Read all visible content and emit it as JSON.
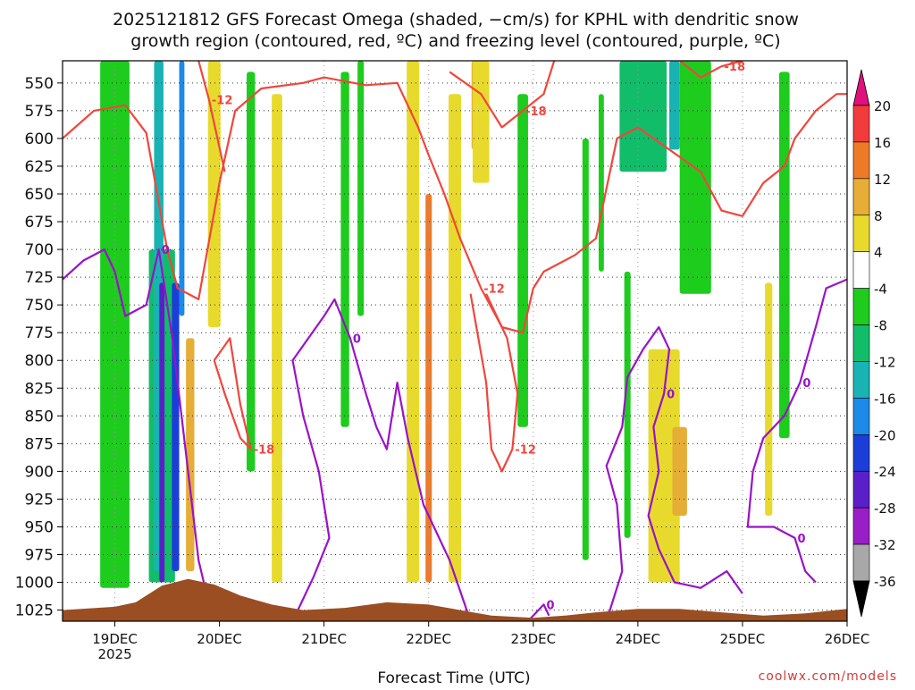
{
  "chart_data": {
    "type": "heatmap",
    "title_line1": "2025121812 GFS Forecast Omega (shaded, −cm/s) for KPHL with dendritic snow",
    "title_line2": "growth region (contoured, red, ºC) and freezing level (contoured, purple, ºC)",
    "xlabel": "Forecast Time (UTC)",
    "ylabel": "",
    "credit": "coolwx.com/models",
    "x_ticks": [
      "19DEC",
      "20DEC",
      "21DEC",
      "22DEC",
      "23DEC",
      "24DEC",
      "25DEC",
      "26DEC"
    ],
    "x_year": "2025",
    "x_range_days": [
      -0.5,
      7.0
    ],
    "y_ticks": [
      "550",
      "575",
      "600",
      "625",
      "650",
      "675",
      "700",
      "725",
      "750",
      "775",
      "800",
      "825",
      "850",
      "875",
      "900",
      "925",
      "950",
      "975",
      "1000",
      "1025"
    ],
    "y_range_hpa": [
      530,
      1035
    ],
    "colorbar": {
      "labels": [
        "20",
        "16",
        "12",
        "8",
        "4",
        "-4",
        "-8",
        "-12",
        "-16",
        "-20",
        "-24",
        "-28",
        "-32",
        "-36"
      ],
      "bins": [
        {
          "from": 16,
          "to": 20,
          "color": "#f23b3b"
        },
        {
          "from": 12,
          "to": 16,
          "color": "#ee7a28"
        },
        {
          "from": 8,
          "to": 12,
          "color": "#e6ad37"
        },
        {
          "from": 4,
          "to": 8,
          "color": "#e8da2d"
        },
        {
          "from": -4,
          "to": 4,
          "color": "#ffffff"
        },
        {
          "from": -8,
          "to": -4,
          "color": "#1ecc1e"
        },
        {
          "from": -12,
          "to": -8,
          "color": "#12bd6a"
        },
        {
          "from": -16,
          "to": -12,
          "color": "#1ab3b3"
        },
        {
          "from": -20,
          "to": -16,
          "color": "#1c8ae8"
        },
        {
          "from": -24,
          "to": -20,
          "color": "#1c3ed8"
        },
        {
          "from": -28,
          "to": -24,
          "color": "#5a1fc8"
        },
        {
          "from": -32,
          "to": -28,
          "color": "#9a1ec8"
        },
        {
          "from": -36,
          "to": -32,
          "color": "#a8a8a8"
        }
      ],
      "top_arrow_color": "#e0107c",
      "bottom_arrow_color": "#000000"
    },
    "omega_patches": [
      {
        "day": 0.0,
        "w": 0.28,
        "p_top": 530,
        "p_bot": 1005,
        "v": -6
      },
      {
        "day": 0.45,
        "w": 0.25,
        "p_top": 700,
        "p_bot": 1000,
        "v": -10
      },
      {
        "day": 0.42,
        "w": 0.09,
        "p_top": 530,
        "p_bot": 990,
        "v": -14
      },
      {
        "day": 0.45,
        "w": 0.05,
        "p_top": 730,
        "p_bot": 1000,
        "v": -26
      },
      {
        "day": 0.58,
        "w": 0.07,
        "p_top": 730,
        "p_bot": 990,
        "v": -22
      },
      {
        "day": 0.64,
        "w": 0.05,
        "p_top": 530,
        "p_bot": 760,
        "v": -17
      },
      {
        "day": 0.72,
        "w": 0.08,
        "p_top": 780,
        "p_bot": 990,
        "v": 10
      },
      {
        "day": 0.95,
        "w": 0.12,
        "p_top": 530,
        "p_bot": 770,
        "v": 6
      },
      {
        "day": 1.3,
        "w": 0.08,
        "p_top": 540,
        "p_bot": 900,
        "v": -6
      },
      {
        "day": 1.55,
        "w": 0.1,
        "p_top": 560,
        "p_bot": 1000,
        "v": 6
      },
      {
        "day": 2.2,
        "w": 0.08,
        "p_top": 540,
        "p_bot": 860,
        "v": -6
      },
      {
        "day": 2.35,
        "w": 0.06,
        "p_top": 530,
        "p_bot": 760,
        "v": -6
      },
      {
        "day": 2.85,
        "w": 0.12,
        "p_top": 530,
        "p_bot": 1000,
        "v": 6
      },
      {
        "day": 3.0,
        "w": 0.06,
        "p_top": 650,
        "p_bot": 1000,
        "v": 12
      },
      {
        "day": 3.25,
        "w": 0.12,
        "p_top": 560,
        "p_bot": 1000,
        "v": 6
      },
      {
        "day": 3.45,
        "w": 0.08,
        "p_top": 530,
        "p_bot": 610,
        "v": 10
      },
      {
        "day": 3.5,
        "w": 0.16,
        "p_top": 530,
        "p_bot": 640,
        "v": 6
      },
      {
        "day": 3.9,
        "w": 0.1,
        "p_top": 560,
        "p_bot": 860,
        "v": -6
      },
      {
        "day": 4.5,
        "w": 0.06,
        "p_top": 600,
        "p_bot": 980,
        "v": -6
      },
      {
        "day": 4.65,
        "w": 0.05,
        "p_top": 560,
        "p_bot": 720,
        "v": -6
      },
      {
        "day": 4.9,
        "w": 0.06,
        "p_top": 720,
        "p_bot": 960,
        "v": -6
      },
      {
        "day": 5.05,
        "w": 0.45,
        "p_top": 530,
        "p_bot": 630,
        "v": -10
      },
      {
        "day": 5.35,
        "w": 0.1,
        "p_top": 530,
        "p_bot": 610,
        "v": -15
      },
      {
        "day": 5.55,
        "w": 0.3,
        "p_top": 530,
        "p_bot": 740,
        "v": -6
      },
      {
        "day": 5.25,
        "w": 0.3,
        "p_top": 790,
        "p_bot": 1000,
        "v": 6
      },
      {
        "day": 5.4,
        "w": 0.14,
        "p_top": 860,
        "p_bot": 940,
        "v": 10
      },
      {
        "day": 6.4,
        "w": 0.1,
        "p_top": 540,
        "p_bot": 870,
        "v": -6
      },
      {
        "day": 6.25,
        "w": 0.07,
        "p_top": 730,
        "p_bot": 940,
        "v": 6
      }
    ],
    "red_contours": [
      {
        "label": "-12",
        "points": [
          [
            -0.5,
            600
          ],
          [
            -0.2,
            575
          ],
          [
            0.1,
            570
          ],
          [
            0.3,
            595
          ],
          [
            0.5,
            700
          ],
          [
            0.6,
            735
          ],
          [
            0.8,
            745
          ],
          [
            1.0,
            640
          ],
          [
            1.15,
            575
          ],
          [
            1.4,
            555
          ],
          [
            1.8,
            550
          ],
          [
            2.0,
            545
          ],
          [
            2.4,
            552
          ],
          [
            2.7,
            550
          ],
          [
            2.9,
            590
          ],
          [
            3.0,
            615
          ],
          [
            3.15,
            650
          ],
          [
            3.3,
            690
          ],
          [
            3.5,
            735
          ],
          [
            3.7,
            770
          ],
          [
            3.9,
            775
          ],
          [
            4.0,
            735
          ],
          [
            4.1,
            720
          ],
          [
            4.4,
            705
          ],
          [
            4.6,
            690
          ],
          [
            4.8,
            600
          ],
          [
            5.0,
            590
          ],
          [
            5.3,
            610
          ],
          [
            5.6,
            630
          ],
          [
            5.8,
            665
          ],
          [
            6.0,
            670
          ],
          [
            6.2,
            640
          ],
          [
            6.4,
            625
          ],
          [
            6.5,
            600
          ],
          [
            6.7,
            575
          ],
          [
            6.9,
            560
          ],
          [
            7.0,
            560
          ]
        ]
      },
      {
        "label": "-12",
        "points": [
          [
            3.4,
            740
          ],
          [
            3.55,
            820
          ],
          [
            3.6,
            880
          ],
          [
            3.7,
            900
          ],
          [
            3.8,
            880
          ],
          [
            3.85,
            830
          ],
          [
            3.75,
            780
          ],
          [
            3.55,
            740
          ]
        ]
      },
      {
        "label": "-18",
        "points": [
          [
            0.95,
            800
          ],
          [
            1.1,
            780
          ],
          [
            1.2,
            840
          ],
          [
            1.3,
            880
          ],
          [
            1.2,
            870
          ],
          [
            1.05,
            830
          ],
          [
            0.95,
            800
          ]
        ]
      },
      {
        "label": "-18",
        "points": [
          [
            3.2,
            540
          ],
          [
            3.5,
            560
          ],
          [
            3.7,
            590
          ],
          [
            3.9,
            575
          ],
          [
            4.1,
            560
          ],
          [
            4.2,
            530
          ]
        ]
      },
      {
        "label": "-18",
        "points": [
          [
            5.4,
            530
          ],
          [
            5.6,
            545
          ],
          [
            5.8,
            535
          ],
          [
            6.0,
            530
          ]
        ]
      },
      {
        "label": "-12",
        "points": [
          [
            0.8,
            530
          ],
          [
            0.9,
            565
          ],
          [
            1.05,
            630
          ]
        ]
      }
    ],
    "purple_contours": [
      {
        "label": "0",
        "points": [
          [
            -0.5,
            727
          ],
          [
            -0.3,
            710
          ],
          [
            -0.1,
            700
          ],
          [
            0.0,
            720
          ],
          [
            0.1,
            760
          ],
          [
            0.3,
            750
          ],
          [
            0.42,
            700
          ],
          [
            0.55,
            780
          ],
          [
            0.7,
            900
          ],
          [
            0.8,
            980
          ],
          [
            0.9,
            1020
          ],
          [
            1.0,
            1035
          ]
        ]
      },
      {
        "label": "0",
        "points": [
          [
            1.7,
            1035
          ],
          [
            1.9,
            995
          ],
          [
            2.05,
            960
          ],
          [
            1.95,
            900
          ],
          [
            1.8,
            850
          ],
          [
            1.7,
            800
          ],
          [
            1.85,
            780
          ],
          [
            2.0,
            760
          ],
          [
            2.1,
            745
          ],
          [
            2.25,
            780
          ],
          [
            2.4,
            830
          ],
          [
            2.5,
            860
          ],
          [
            2.6,
            880
          ],
          [
            2.7,
            820
          ],
          [
            2.8,
            870
          ],
          [
            2.95,
            930
          ],
          [
            3.2,
            980
          ],
          [
            3.4,
            1035
          ]
        ]
      },
      {
        "label": "0",
        "points": [
          [
            4.7,
            1035
          ],
          [
            4.85,
            990
          ],
          [
            4.8,
            930
          ],
          [
            4.7,
            895
          ],
          [
            4.85,
            860
          ],
          [
            4.9,
            815
          ],
          [
            5.05,
            790
          ],
          [
            5.2,
            770
          ],
          [
            5.3,
            790
          ],
          [
            5.25,
            830
          ],
          [
            5.15,
            860
          ],
          [
            5.2,
            900
          ],
          [
            5.1,
            940
          ],
          [
            5.2,
            970
          ],
          [
            5.35,
            1000
          ],
          [
            5.6,
            1005
          ],
          [
            5.85,
            990
          ],
          [
            6.0,
            1010
          ]
        ]
      },
      {
        "label": "0",
        "points": [
          [
            6.1,
            900
          ],
          [
            6.2,
            870
          ],
          [
            6.4,
            850
          ],
          [
            6.55,
            820
          ],
          [
            6.7,
            770
          ],
          [
            6.8,
            735
          ],
          [
            7.0,
            727
          ]
        ]
      },
      {
        "label": "0",
        "points": [
          [
            6.1,
            900
          ],
          [
            6.05,
            950
          ],
          [
            6.3,
            950
          ],
          [
            6.5,
            960
          ],
          [
            6.6,
            990
          ],
          [
            6.7,
            1000
          ]
        ]
      },
      {
        "label": "0",
        "points": [
          [
            3.95,
            1035
          ],
          [
            4.1,
            1020
          ],
          [
            4.15,
            1030
          ]
        ]
      }
    ],
    "terrain_profile": [
      [
        -0.5,
        1025
      ],
      [
        0.0,
        1022
      ],
      [
        0.2,
        1018
      ],
      [
        0.45,
        1003
      ],
      [
        0.7,
        997
      ],
      [
        0.95,
        1002
      ],
      [
        1.2,
        1012
      ],
      [
        1.5,
        1020
      ],
      [
        1.8,
        1025
      ],
      [
        2.2,
        1023
      ],
      [
        2.6,
        1018
      ],
      [
        3.0,
        1020
      ],
      [
        3.3,
        1025
      ],
      [
        3.6,
        1030
      ],
      [
        4.0,
        1032
      ],
      [
        4.3,
        1030
      ],
      [
        4.6,
        1027
      ],
      [
        5.0,
        1024
      ],
      [
        5.4,
        1024
      ],
      [
        5.8,
        1027
      ],
      [
        6.2,
        1030
      ],
      [
        6.6,
        1028
      ],
      [
        7.0,
        1024
      ]
    ]
  }
}
